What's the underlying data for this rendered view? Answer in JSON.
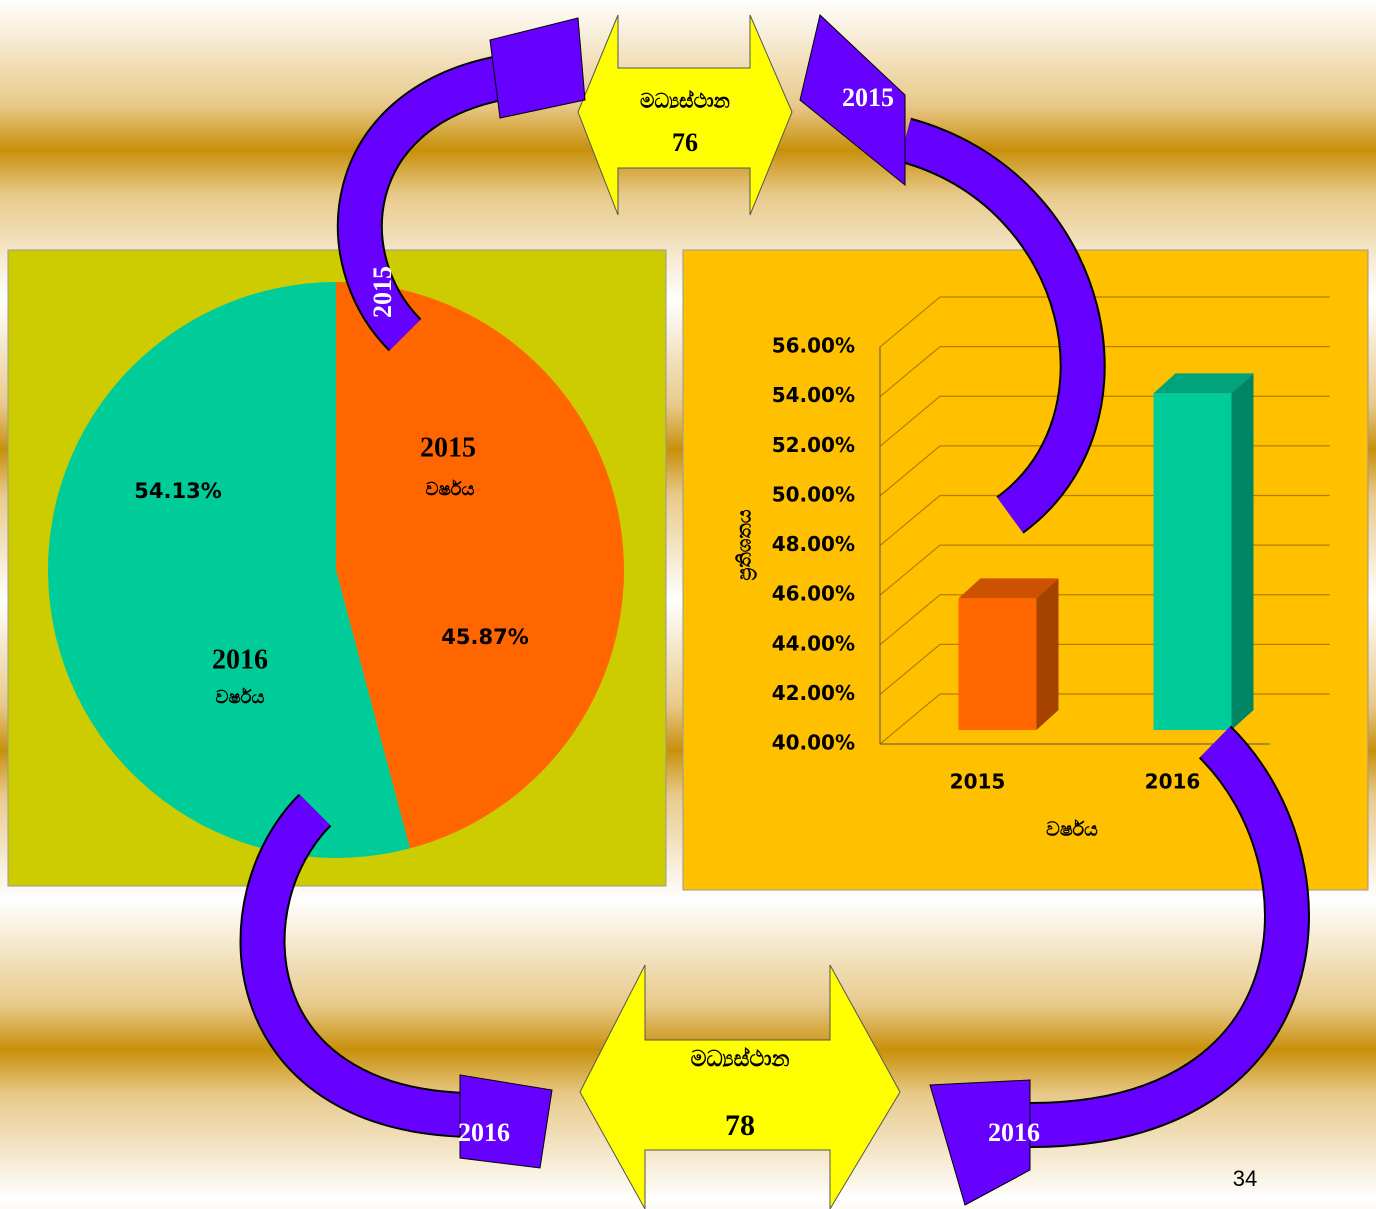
{
  "chart_data": [
    {
      "type": "pie",
      "categories": [
        "2015",
        "2016"
      ],
      "category_notes": [
        "වර්ෂය",
        "වර්ෂය"
      ],
      "values": [
        45.87,
        54.13
      ],
      "value_labels": [
        "45.87%",
        "54.13%"
      ],
      "colors": [
        "#ff6600",
        "#00cc99"
      ]
    },
    {
      "type": "bar",
      "categories": [
        "2015",
        "2016"
      ],
      "values": [
        45.87,
        54.13
      ],
      "colors": [
        "#ff6600",
        "#00cc99"
      ],
      "xlabel": "වර්ෂය",
      "ylabel": "ප්‍රතිශතය",
      "ylim": [
        40,
        56
      ],
      "yticks": [
        {
          "value": 40,
          "label": "40.00%"
        },
        {
          "value": 42,
          "label": "42.00%"
        },
        {
          "value": 44,
          "label": "44.00%"
        },
        {
          "value": 46,
          "label": "46.00%"
        },
        {
          "value": 48,
          "label": "48.00%"
        },
        {
          "value": 50,
          "label": "50.00%"
        },
        {
          "value": 52,
          "label": "52.00%"
        },
        {
          "value": 54,
          "label": "54.00%"
        },
        {
          "value": 56,
          "label": "56.00%"
        }
      ],
      "grid": true
    }
  ],
  "slide": {
    "top_callout": {
      "label": "මධ්‍යස්ථාන",
      "value": "76"
    },
    "bottom_callout": {
      "label": "මධ්‍යස්ථාන",
      "value": "78"
    },
    "arrow_labels": [
      "2015",
      "2015",
      "2016",
      "2016"
    ],
    "page_number": "34"
  }
}
